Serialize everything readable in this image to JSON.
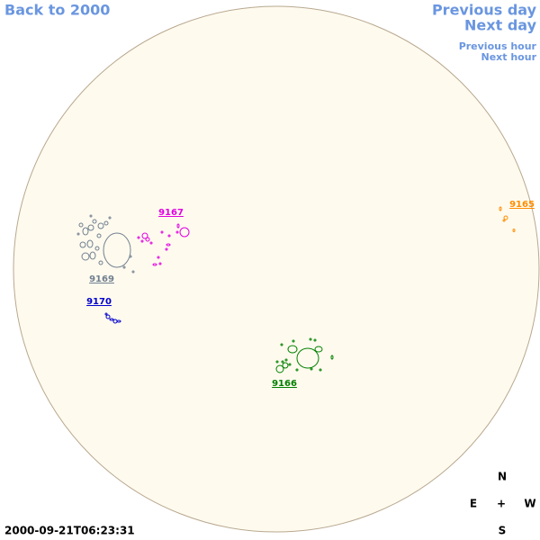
{
  "navigation": {
    "back": "Back to 2000",
    "previous_day": "Previous day",
    "next_day": "Next day",
    "previous_hour": "Previous hour",
    "next_hour": "Next hour"
  },
  "regions": [
    {
      "label": "9165",
      "color": "#ff8c00"
    },
    {
      "label": "9166",
      "color": "#008000"
    },
    {
      "label": "9167",
      "color": "#e000e0"
    },
    {
      "label": "9169",
      "color": "#708090"
    },
    {
      "label": "9170",
      "color": "#0000cd"
    }
  ],
  "timestamp": "2000-09-21T06:23:31",
  "compass": {
    "north": "N",
    "east": "E",
    "center": "+",
    "west": "W",
    "south": "S"
  }
}
